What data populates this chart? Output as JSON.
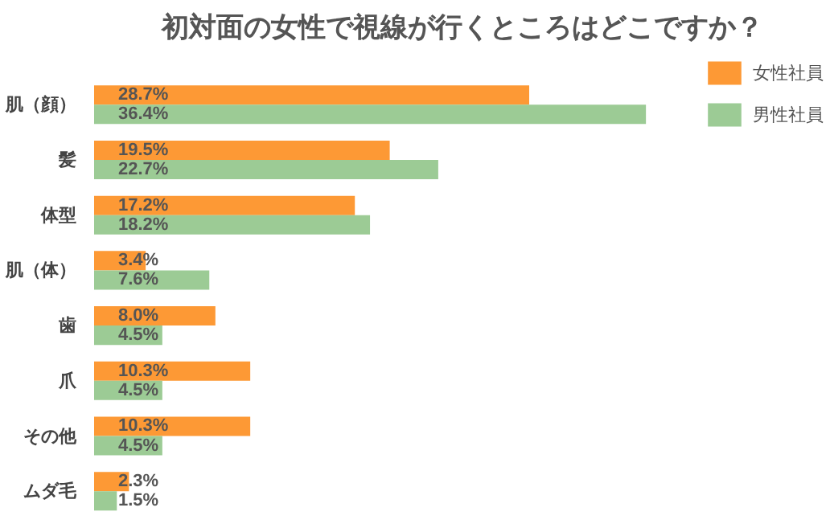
{
  "chart_data": {
    "type": "bar",
    "orientation": "horizontal",
    "title": "初対面の女性で視線が行くところはどこですか？",
    "categories": [
      "肌（顔）",
      "髪",
      "体型",
      "肌（体）",
      "歯",
      "爪",
      "その他",
      "ムダ毛"
    ],
    "series": [
      {
        "name": "女性社員",
        "color": "#fd9935",
        "values": [
          28.7,
          19.5,
          17.2,
          3.4,
          8.0,
          10.3,
          10.3,
          2.3
        ],
        "value_labels": [
          "28.7%",
          "19.5%",
          "17.2%",
          "3.4%",
          "8.0%",
          "10.3%",
          "10.3%",
          "2.3%"
        ]
      },
      {
        "name": "男性社員",
        "color": "#9ccb95",
        "values": [
          36.4,
          22.7,
          18.2,
          7.6,
          4.5,
          4.5,
          4.5,
          1.5
        ],
        "value_labels": [
          "36.4%",
          "22.7%",
          "18.2%",
          "7.6%",
          "4.5%",
          "4.5%",
          "4.5%",
          "1.5%"
        ]
      }
    ],
    "legend": "top right",
    "grid": false
  }
}
